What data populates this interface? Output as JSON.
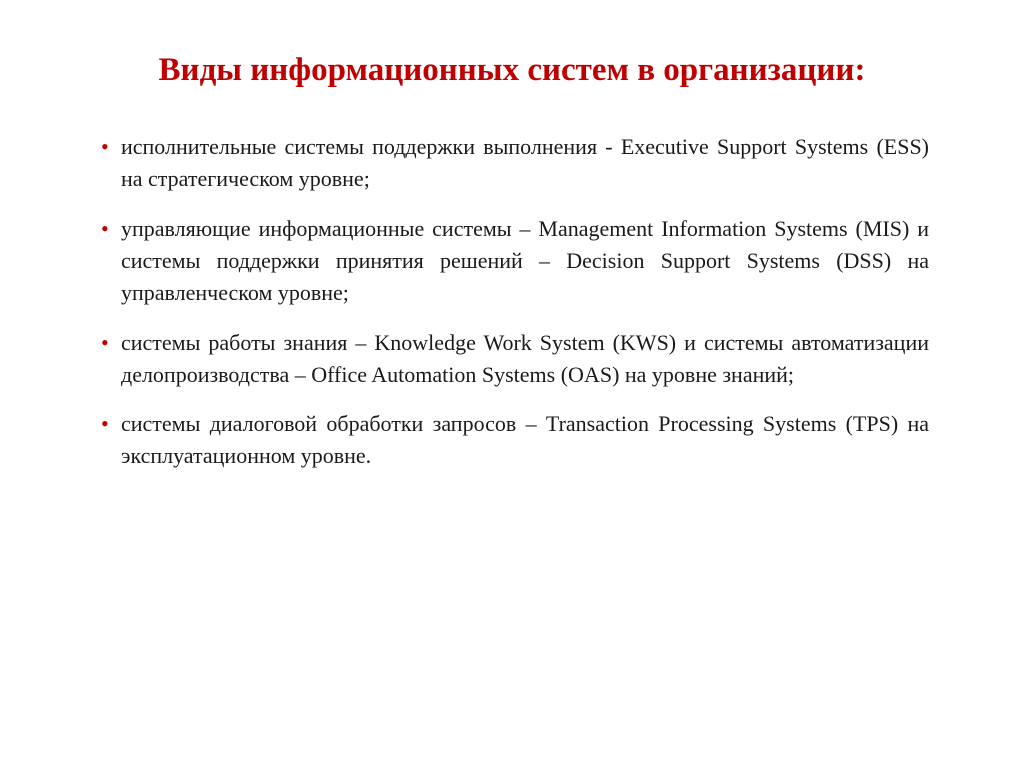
{
  "title": "Виды информационных систем в организации:",
  "title_color": "#c00000",
  "title_fontsize": 33,
  "bullet_color": "#c00000",
  "body_color": "#1a1a1a",
  "body_fontsize": 22,
  "background_color": "#ffffff",
  "items": [
    "исполнительные системы поддержки выполнения - Executive Support Systems (ESS) на стратегическом уровне;",
    "управляющие информационные системы – Management Information Systems (MIS) и системы поддержки принятия решений – Decision Support Systems (DSS) на управленческом уровне;",
    "системы работы знания – Knowledge Work System (KWS) и системы автоматизации делопроизводства – Office Automation Systems (OAS) на уровне знаний;",
    "системы диалоговой обработки запросов – Transaction Processing Systems (TPS) на эксплуатационном уровне."
  ]
}
